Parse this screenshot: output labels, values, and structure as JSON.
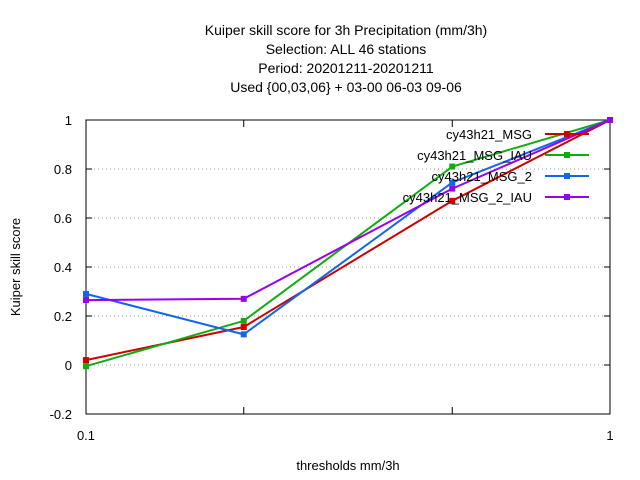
{
  "chart_data": {
    "type": "line",
    "title_lines": [
      "Kuiper skill score  for 3h Precipitation (mm/3h)",
      "Selection: ALL      46 stations",
      "Period: 20201211-20201211",
      "Used {00,03,06} + 03-00 06-03 09-06"
    ],
    "xlabel": "thresholds mm/3h",
    "ylabel": "Kuiper skill score",
    "x_scale": "log",
    "xlim": [
      0.1,
      1
    ],
    "ylim": [
      -0.2,
      1
    ],
    "x_ticks": [
      {
        "value": 0.1,
        "label": "0.1"
      },
      {
        "value": 1,
        "label": "1"
      }
    ],
    "x_minor_ticks": [
      0.2,
      0.5
    ],
    "y_ticks": [
      {
        "value": -0.2,
        "label": "-0.2"
      },
      {
        "value": 0,
        "label": "0"
      },
      {
        "value": 0.2,
        "label": "0.2"
      },
      {
        "value": 0.4,
        "label": "0.4"
      },
      {
        "value": 0.6,
        "label": "0.6"
      },
      {
        "value": 0.8,
        "label": "0.8"
      },
      {
        "value": 1,
        "label": "1"
      }
    ],
    "grid": "horizontal dotted",
    "legend_position": "top-right",
    "x": [
      0.1,
      0.2,
      0.5,
      1
    ],
    "series": [
      {
        "name": "cy43h21_MSG",
        "color": "#cc0000",
        "values": [
          0.02,
          0.155,
          0.67,
          1.0
        ]
      },
      {
        "name": "cy43h21_MSG_IAU",
        "color": "#11aa11",
        "values": [
          -0.005,
          0.18,
          0.81,
          1.0
        ]
      },
      {
        "name": "cy43h21_MSG_2",
        "color": "#1166ee",
        "values": [
          0.29,
          0.125,
          0.745,
          1.0
        ]
      },
      {
        "name": "cy43h21_MSG_2_IAU",
        "color": "#9900ee",
        "values": [
          0.265,
          0.27,
          0.72,
          1.0
        ]
      }
    ]
  }
}
